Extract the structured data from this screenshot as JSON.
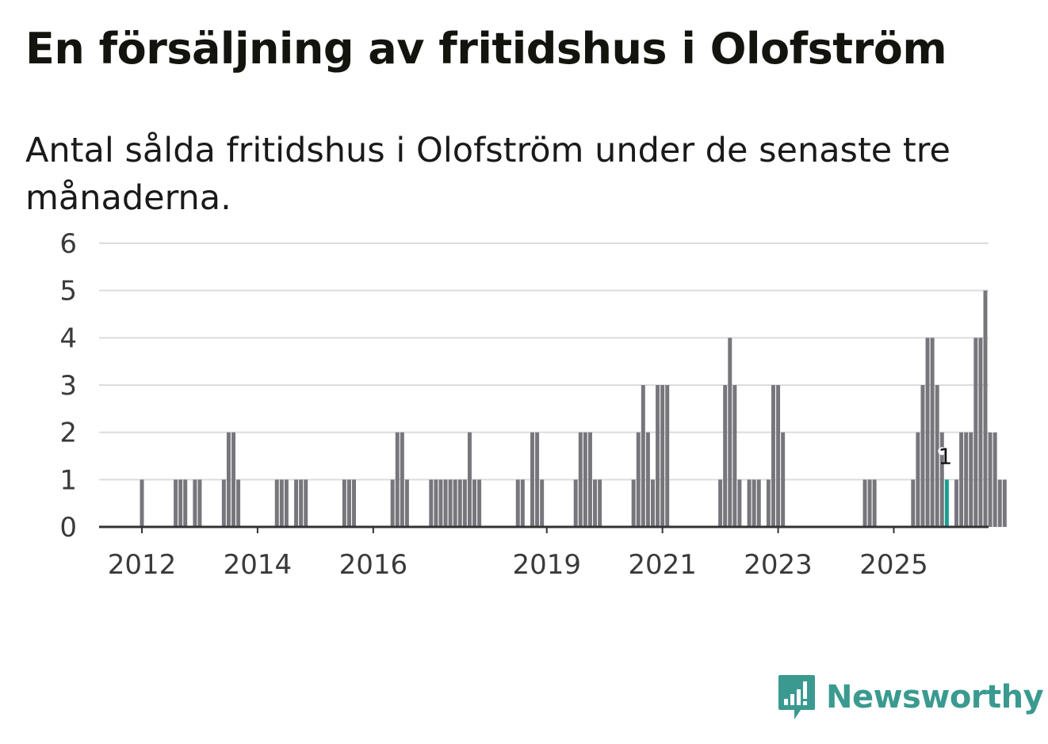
{
  "title": "En försäljning av fritidshus i Olofström",
  "subtitle": "Antal sålda fritidshus i Olofström under de senaste tre månaderna.",
  "brand": {
    "name": "Newsworthy",
    "color": "#3a9a90"
  },
  "colors": {
    "bar": "#77767c",
    "highlight": "#1a9e8f",
    "grid": "#dcdcdc",
    "axis": "#333333"
  },
  "chart_data": {
    "type": "bar",
    "title": "En försäljning av fritidshus i Olofström",
    "xlabel": "",
    "ylabel": "",
    "ylim": [
      0,
      6
    ],
    "yticks": [
      "0",
      "1",
      "2",
      "3",
      "4",
      "5",
      "6"
    ],
    "x_tick_labels": [
      {
        "label": "2012",
        "month_index": 0
      },
      {
        "label": "2014",
        "month_index": 24
      },
      {
        "label": "2016",
        "month_index": 48
      },
      {
        "label": "2019",
        "month_index": 84
      },
      {
        "label": "2021",
        "month_index": 108
      },
      {
        "label": "2023",
        "month_index": 132
      },
      {
        "label": "2025",
        "month_index": 156
      }
    ],
    "start_month": "2012-01",
    "values": [
      1,
      0,
      0,
      0,
      0,
      0,
      0,
      1,
      1,
      1,
      0,
      1,
      1,
      0,
      0,
      0,
      0,
      1,
      2,
      2,
      1,
      0,
      0,
      0,
      0,
      0,
      0,
      0,
      1,
      1,
      1,
      0,
      1,
      1,
      1,
      0,
      0,
      0,
      0,
      0,
      0,
      0,
      1,
      1,
      1,
      0,
      0,
      0,
      0,
      0,
      0,
      0,
      1,
      2,
      2,
      1,
      0,
      0,
      0,
      0,
      1,
      1,
      1,
      1,
      1,
      1,
      1,
      1,
      2,
      1,
      1,
      0,
      0,
      0,
      0,
      0,
      0,
      0,
      1,
      1,
      0,
      2,
      2,
      1,
      0,
      0,
      0,
      0,
      0,
      0,
      1,
      2,
      2,
      2,
      1,
      1,
      0,
      0,
      0,
      0,
      0,
      0,
      1,
      2,
      3,
      2,
      1,
      3,
      3,
      3,
      0,
      0,
      0,
      0,
      0,
      0,
      0,
      0,
      0,
      0,
      1,
      3,
      4,
      3,
      1,
      0,
      1,
      1,
      1,
      0,
      1,
      3,
      3,
      2,
      0,
      0,
      0,
      0,
      0,
      0,
      0,
      0,
      0,
      0,
      0,
      0,
      0,
      0,
      0,
      0,
      1,
      1,
      1,
      0,
      0,
      0,
      0,
      0,
      0,
      0,
      1,
      2,
      3,
      4,
      4,
      3,
      2,
      1,
      0,
      1,
      2,
      2,
      2,
      4,
      4,
      5,
      2,
      2,
      1,
      1
    ],
    "highlight_index": 167,
    "highlight_label": "1",
    "series": [
      {
        "name": "Sålda fritidshus",
        "color": "#77767c"
      }
    ]
  }
}
